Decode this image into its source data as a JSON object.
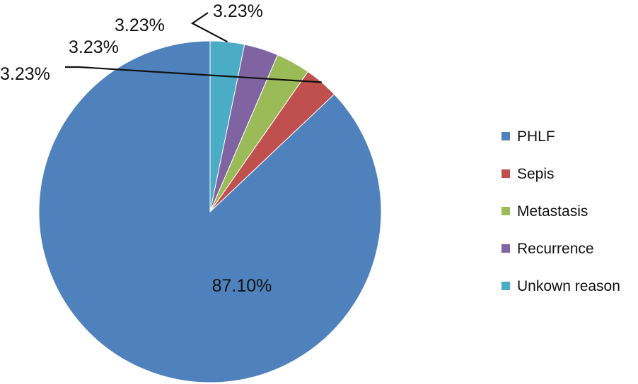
{
  "chart_data": {
    "type": "pie",
    "title": "",
    "categories": [
      "PHLF",
      "Sepis",
      "Metastasis",
      "Recurrence",
      "Unkown reason"
    ],
    "values": [
      87.1,
      3.23,
      3.23,
      3.23,
      3.23
    ],
    "data_labels": [
      "87.10%",
      "3.23%",
      "3.23%",
      "3.23%",
      "3.23%"
    ],
    "colors": [
      "#4F81BD",
      "#C0504D",
      "#9BBB59",
      "#8064A2",
      "#4BACC6"
    ],
    "start_angle": "12 o'clock",
    "direction": "counter-clockwise",
    "legend_position": "right"
  }
}
